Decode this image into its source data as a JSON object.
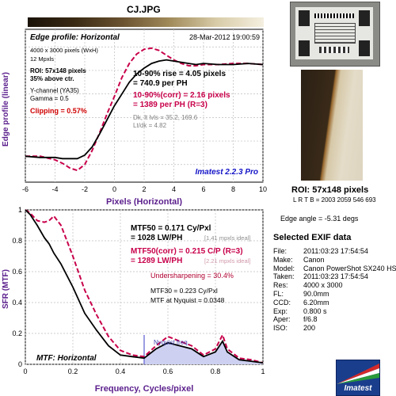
{
  "title": "CJ.JPG",
  "colors": {
    "title": "#5a1e8c",
    "axis_label": "#5a1e8c",
    "solid": "#000000",
    "dashed": "#c8004a",
    "red_text": "#d00000",
    "blue_text": "#1414c8",
    "shade": "#cdd0f0",
    "nyq": "#7a7ad8",
    "grid": "#bdbdbd"
  },
  "edge_chart": {
    "chart_title": "Edge profile: Horizontal",
    "timestamp": "28-Mar-2012 19:00:59",
    "size_text": "4000 x 3000 pixels (WxH)",
    "mpxls": "12 Mpxls",
    "roi": "ROI: 57x148 pixels",
    "above_ctr": "35% above ctr.",
    "channel": "Y-channel  (YA35)",
    "gamma": "Gamma = 0.5",
    "clipping": "Clipping =  0.57%",
    "rise": "10-90% rise = 4.05 pixels",
    "rise_ph": "= 740.9 per PH",
    "corr": "10-90%(corr) = 2.16 pixels",
    "corr_ph": "= 1389 per PH  (R=3)",
    "dk_lt": "Dk, lt lvls = 35.2, 169.6",
    "lt_dk": "Lt/dk = 4.82",
    "version": "Imatest 2.2.3 Pro",
    "ylabel": "Edge profile (linear)",
    "xlabel": "Pixels (Horizontal)",
    "x_ticks": [
      "-6",
      "-4",
      "-2",
      "0",
      "2",
      "4",
      "6",
      "8",
      "10"
    ]
  },
  "mtf_chart": {
    "chart_title": "MTF: Horizontal",
    "mtf50": "MTF50 = 0.171 Cy/Pxl",
    "mtf50_lw": "= 1028 LW/PH",
    "mtf50_ideal": "[1.41 mpxls ideal]",
    "mtf50corr": "MTF50(corr) = 0.215 C/P  (R=3)",
    "mtf50corr_lw": "= 1289 LW/PH",
    "mtf50corr_ideal": "[2.21 mpxls ideal]",
    "undersharp": "Undersharpening = 30.4%",
    "mtf30": "MTF30 = 0.223 Cy/Pxl",
    "mtf_nyq": "MTF at Nyquist = 0.0348",
    "nyquist_label": "Nyquist freq.",
    "ylabel": "SFR (MTF)",
    "xlabel": "Frequency, Cycles/pixel",
    "x_ticks": [
      "0",
      "0.2",
      "0.4",
      "0.6",
      "0.8",
      "1"
    ],
    "y_ticks": [
      "0",
      "0.2",
      "0.4",
      "0.6",
      "0.8",
      "1"
    ]
  },
  "roi_panel": {
    "label": "ROI: 57x148 pixels",
    "lrtb": "L R  T B = 2003 2059  546 693",
    "edge_angle": "Edge angle = -5.31 degs"
  },
  "exif": {
    "title": "Selected EXIF data",
    "rows": [
      {
        "label": "File:",
        "value": "2011:03:23 17:54:54"
      },
      {
        "label": "Make:",
        "value": "Canon"
      },
      {
        "label": "Model:",
        "value": "Canon PowerShot SX240 HS"
      },
      {
        "label": "Taken:",
        "value": "2011:03:23 17:54:54"
      },
      {
        "label": "Res:",
        "value": "4000 x 3000"
      },
      {
        "label": "FL:",
        "value": "90.0mm"
      },
      {
        "label": "CCD:",
        "value": "6.20mm"
      },
      {
        "label": "Exp:",
        "value": "0.800 s"
      },
      {
        "label": "Aper:",
        "value": "f/6.8"
      },
      {
        "label": "ISO:",
        "value": "200"
      }
    ]
  },
  "logo_text": "Imatest",
  "chart_data": [
    {
      "type": "line",
      "title": "Edge profile: Horizontal",
      "xlabel": "Pixels (Horizontal)",
      "ylabel": "Edge profile (linear)",
      "xlim": [
        -6,
        10
      ],
      "grid": true,
      "series": [
        {
          "x": [
            -6,
            -5,
            -4,
            -3.5,
            -3,
            -2.5,
            -2,
            -1.5,
            -1,
            -0.5,
            0,
            0.5,
            1,
            1.5,
            2,
            2.5,
            3,
            3.5,
            4,
            4.5,
            5,
            5.5,
            6,
            7,
            8,
            9,
            10
          ],
          "y": [
            0.07,
            0.06,
            0.06,
            0.05,
            0.05,
            0.05,
            0.08,
            0.15,
            0.26,
            0.38,
            0.5,
            0.6,
            0.7,
            0.77,
            0.82,
            0.86,
            0.88,
            0.89,
            0.88,
            0.87,
            0.86,
            0.85,
            0.86,
            0.85,
            0.85,
            0.86,
            0.85
          ]
        },
        {
          "x": [
            -6,
            -5,
            -4,
            -3.5,
            -3,
            -2.5,
            -2,
            -1.5,
            -1,
            -0.5,
            0,
            0.5,
            1,
            1.5,
            2,
            2.5,
            3,
            3.5,
            4,
            4.5,
            5,
            5.5,
            6,
            7,
            8,
            9,
            10
          ],
          "y": [
            0.07,
            0.07,
            0.04,
            0.01,
            -0.03,
            -0.05,
            0.0,
            0.12,
            0.27,
            0.43,
            0.58,
            0.74,
            0.86,
            0.94,
            0.98,
            0.99,
            0.97,
            0.93,
            0.89,
            0.86,
            0.84,
            0.84,
            0.85,
            0.85,
            0.86,
            0.86,
            0.85
          ]
        }
      ]
    },
    {
      "type": "line",
      "title": "MTF: Horizontal",
      "xlabel": "Frequency, Cycles/pixel",
      "ylabel": "SFR (MTF)",
      "xlim": [
        0,
        1
      ],
      "ylim": [
        0,
        1
      ],
      "grid": true,
      "series": [
        {
          "x": [
            0,
            0.02,
            0.05,
            0.08,
            0.1,
            0.12,
            0.15,
            0.2,
            0.25,
            0.3,
            0.35,
            0.4,
            0.45,
            0.5,
            0.55,
            0.6,
            0.65,
            0.7,
            0.75,
            0.8,
            0.83,
            0.85,
            0.9,
            0.95,
            1.0
          ],
          "y": [
            1.0,
            0.97,
            0.9,
            0.82,
            0.78,
            0.72,
            0.65,
            0.5,
            0.33,
            0.22,
            0.12,
            0.06,
            0.05,
            0.04,
            0.1,
            0.14,
            0.12,
            0.1,
            0.05,
            0.08,
            0.15,
            0.08,
            0.03,
            0.02,
            0.01
          ]
        },
        {
          "x": [
            0,
            0.02,
            0.05,
            0.08,
            0.1,
            0.12,
            0.15,
            0.2,
            0.25,
            0.3,
            0.35,
            0.4,
            0.45,
            0.5,
            0.55,
            0.6,
            0.65,
            0.7,
            0.75,
            0.8,
            0.83,
            0.85,
            0.9,
            0.95,
            1.0
          ],
          "y": [
            1.0,
            0.98,
            0.93,
            0.92,
            0.93,
            0.96,
            0.9,
            0.7,
            0.48,
            0.32,
            0.18,
            0.09,
            0.06,
            0.05,
            0.12,
            0.18,
            0.15,
            0.12,
            0.06,
            0.1,
            0.19,
            0.1,
            0.04,
            0.03,
            0.01
          ]
        }
      ]
    }
  ]
}
